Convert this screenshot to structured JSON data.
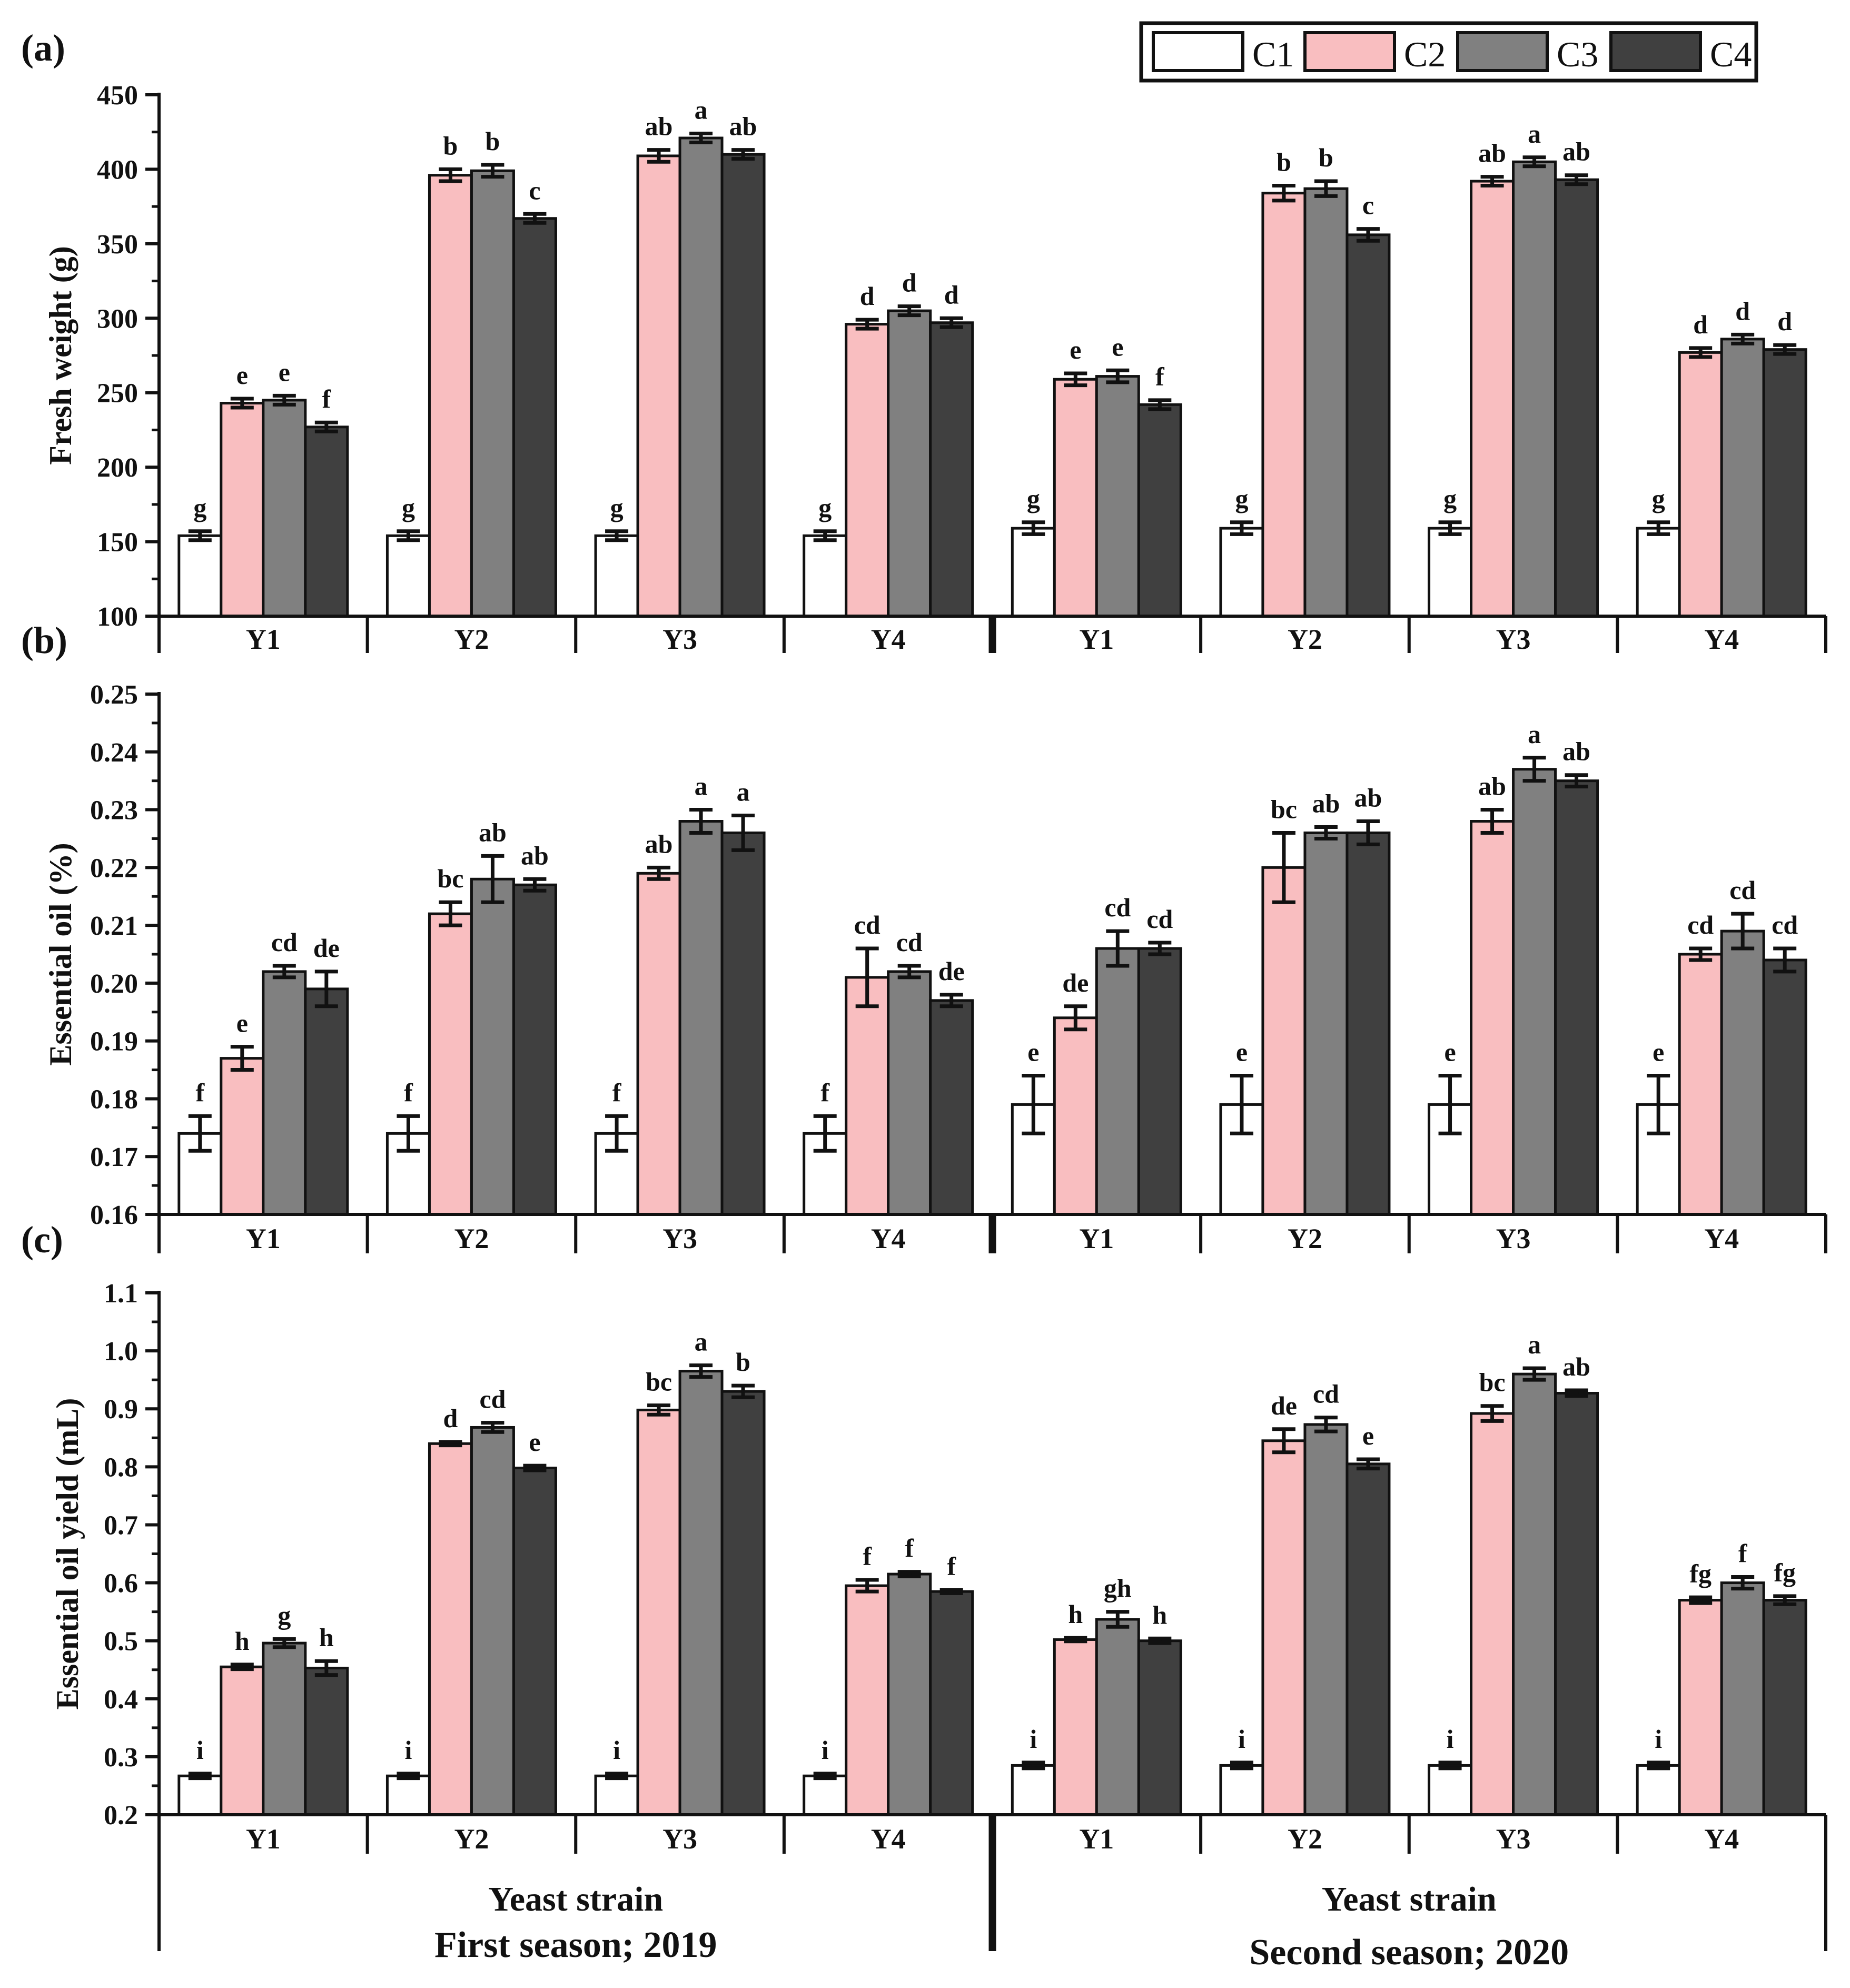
{
  "figure": {
    "legend": {
      "entries": [
        "C1",
        "C2",
        "C3",
        "C4"
      ],
      "colors": [
        "#ffffff",
        "#f9bec0",
        "#808080",
        "#404040"
      ]
    },
    "panel_labels": [
      "(a)",
      "(b)",
      "(c)"
    ],
    "group_labels": [
      "Y1",
      "Y2",
      "Y3",
      "Y4",
      "Y1",
      "Y2",
      "Y3",
      "Y4"
    ],
    "season_axis_label": [
      "Yeast strain",
      "Yeast strain"
    ],
    "seasons": [
      "First season; 2019",
      "Second season; 2020"
    ]
  },
  "chart_data": [
    {
      "type": "bar",
      "panel": "(a)",
      "title": "",
      "xlabel": "",
      "ylabel": "Fresh weight (g)",
      "ylim": [
        100,
        450
      ],
      "yticks": [
        100,
        150,
        200,
        250,
        300,
        350,
        400,
        450
      ],
      "ytick_labels": [
        "100",
        "150",
        "200",
        "250",
        "300",
        "350",
        "400",
        "450"
      ],
      "categories": [
        "Y1",
        "Y2",
        "Y3",
        "Y4",
        "Y1",
        "Y2",
        "Y3",
        "Y4"
      ],
      "series": [
        {
          "name": "C1",
          "values": [
            154,
            154,
            154,
            154,
            159,
            159,
            159,
            159
          ],
          "errors": [
            3,
            3,
            3,
            3,
            4,
            4,
            4,
            4
          ],
          "letters": [
            "g",
            "g",
            "g",
            "g",
            "g",
            "g",
            "g",
            "g"
          ]
        },
        {
          "name": "C2",
          "values": [
            243,
            396,
            409,
            296,
            259,
            384,
            392,
            277
          ],
          "errors": [
            3,
            4,
            4,
            3,
            4,
            5,
            3,
            3
          ],
          "letters": [
            "e",
            "b",
            "ab",
            "d",
            "e",
            "b",
            "ab",
            "d"
          ]
        },
        {
          "name": "C3",
          "values": [
            245,
            399,
            421,
            305,
            261,
            387,
            405,
            286
          ],
          "errors": [
            3,
            4,
            3,
            3,
            4,
            5,
            3,
            3
          ],
          "letters": [
            "e",
            "b",
            "a",
            "d",
            "e",
            "b",
            "a",
            "d"
          ]
        },
        {
          "name": "C4",
          "values": [
            227,
            367,
            410,
            297,
            242,
            356,
            393,
            279
          ],
          "errors": [
            3,
            3,
            3,
            3,
            3,
            4,
            3,
            3
          ],
          "letters": [
            "f",
            "c",
            "ab",
            "d",
            "f",
            "c",
            "ab",
            "d"
          ]
        }
      ]
    },
    {
      "type": "bar",
      "panel": "(b)",
      "title": "",
      "xlabel": "",
      "ylabel": "Essential oil (%)",
      "ylim": [
        0.16,
        0.25
      ],
      "yticks": [
        0.16,
        0.17,
        0.18,
        0.19,
        0.2,
        0.21,
        0.22,
        0.23,
        0.24,
        0.25
      ],
      "ytick_labels": [
        "0.16",
        "0.17",
        "0.18",
        "0.19",
        "0.20",
        "0.21",
        "0.22",
        "0.23",
        "0.24",
        "0.25"
      ],
      "categories": [
        "Y1",
        "Y2",
        "Y3",
        "Y4",
        "Y1",
        "Y2",
        "Y3",
        "Y4"
      ],
      "series": [
        {
          "name": "C1",
          "values": [
            0.174,
            0.174,
            0.174,
            0.174,
            0.179,
            0.179,
            0.179,
            0.179
          ],
          "errors": [
            0.003,
            0.003,
            0.003,
            0.003,
            0.005,
            0.005,
            0.005,
            0.005
          ],
          "letters": [
            "f",
            "f",
            "f",
            "f",
            "e",
            "e",
            "e",
            "e"
          ]
        },
        {
          "name": "C2",
          "values": [
            0.187,
            0.212,
            0.219,
            0.201,
            0.194,
            0.22,
            0.228,
            0.205
          ],
          "errors": [
            0.002,
            0.002,
            0.001,
            0.005,
            0.002,
            0.006,
            0.002,
            0.001
          ],
          "letters": [
            "e",
            "bc",
            "ab",
            "cd",
            "de",
            "bc",
            "ab",
            "cd"
          ]
        },
        {
          "name": "C3",
          "values": [
            0.202,
            0.218,
            0.228,
            0.202,
            0.206,
            0.226,
            0.237,
            0.209
          ],
          "errors": [
            0.001,
            0.004,
            0.002,
            0.001,
            0.003,
            0.001,
            0.002,
            0.003
          ],
          "letters": [
            "cd",
            "ab",
            "a",
            "cd",
            "cd",
            "ab",
            "a",
            "cd"
          ]
        },
        {
          "name": "C4",
          "values": [
            0.199,
            0.217,
            0.226,
            0.197,
            0.206,
            0.226,
            0.235,
            0.204
          ],
          "errors": [
            0.003,
            0.001,
            0.003,
            0.001,
            0.001,
            0.002,
            0.001,
            0.002
          ],
          "letters": [
            "de",
            "ab",
            "a",
            "de",
            "cd",
            "ab",
            "ab",
            "cd"
          ]
        }
      ]
    },
    {
      "type": "bar",
      "panel": "(c)",
      "title": "",
      "xlabel": "Yeast strain",
      "ylabel": "Essential oil yield (mL)",
      "ylim": [
        0.2,
        1.1
      ],
      "yticks": [
        0.2,
        0.3,
        0.4,
        0.5,
        0.6,
        0.7,
        0.8,
        0.9,
        1.0,
        1.1
      ],
      "ytick_labels": [
        "0.2",
        "0.3",
        "0.4",
        "0.5",
        "0.6",
        "0.7",
        "0.8",
        "0.9",
        "1.0",
        "1.1"
      ],
      "categories": [
        "Y1",
        "Y2",
        "Y3",
        "Y4",
        "Y1",
        "Y2",
        "Y3",
        "Y4"
      ],
      "series": [
        {
          "name": "C1",
          "values": [
            0.267,
            0.267,
            0.267,
            0.267,
            0.285,
            0.285,
            0.285,
            0.285
          ],
          "errors": [
            0.004,
            0.004,
            0.004,
            0.004,
            0.005,
            0.005,
            0.005,
            0.005
          ],
          "letters": [
            "i",
            "i",
            "i",
            "i",
            "i",
            "i",
            "i",
            "i"
          ]
        },
        {
          "name": "C2",
          "values": [
            0.455,
            0.84,
            0.898,
            0.595,
            0.502,
            0.845,
            0.892,
            0.57
          ],
          "errors": [
            0.004,
            0.003,
            0.008,
            0.01,
            0.003,
            0.02,
            0.013,
            0.005
          ],
          "letters": [
            "h",
            "d",
            "bc",
            "f",
            "h",
            "de",
            "bc",
            "fg"
          ]
        },
        {
          "name": "C3",
          "values": [
            0.496,
            0.868,
            0.965,
            0.615,
            0.537,
            0.873,
            0.96,
            0.6
          ],
          "errors": [
            0.007,
            0.008,
            0.01,
            0.004,
            0.013,
            0.012,
            0.01,
            0.01
          ],
          "letters": [
            "g",
            "cd",
            "a",
            "f",
            "gh",
            "cd",
            "a",
            "f"
          ]
        },
        {
          "name": "C4",
          "values": [
            0.453,
            0.798,
            0.93,
            0.585,
            0.5,
            0.805,
            0.927,
            0.57
          ],
          "errors": [
            0.012,
            0.004,
            0.01,
            0.003,
            0.004,
            0.008,
            0.005,
            0.007
          ],
          "letters": [
            "h",
            "e",
            "b",
            "f",
            "h",
            "e",
            "ab",
            "fg"
          ]
        }
      ]
    }
  ]
}
